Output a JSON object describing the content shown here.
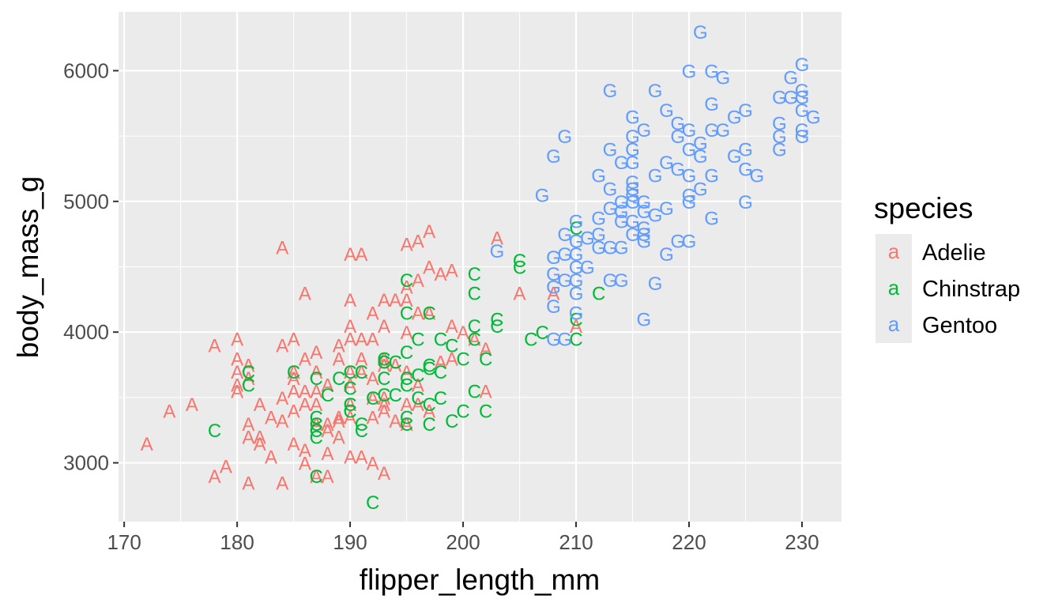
{
  "chart_data": {
    "type": "scatter",
    "xlabel": "flipper_length_mm",
    "ylabel": "body_mass_g",
    "xlim": [
      169.5,
      233.5
    ],
    "ylim": [
      2550,
      6450
    ],
    "x_ticks": [
      "170",
      "180",
      "190",
      "200",
      "210",
      "220",
      "230"
    ],
    "y_ticks": [
      "3000",
      "4000",
      "5000",
      "6000"
    ],
    "grid": true,
    "legend": {
      "title": "species",
      "position": "right",
      "key_glyph": "a",
      "entries": [
        "Adelie",
        "Chinstrap",
        "Gentoo"
      ]
    },
    "series": [
      {
        "name": "Adelie",
        "label": "A",
        "color": "#F8766D",
        "points": [
          [
            172,
            3150
          ],
          [
            174,
            3400
          ],
          [
            176,
            3450
          ],
          [
            178,
            2900
          ],
          [
            178,
            3900
          ],
          [
            179,
            2975
          ],
          [
            180,
            3550
          ],
          [
            180,
            3600
          ],
          [
            180,
            3700
          ],
          [
            180,
            3800
          ],
          [
            180,
            3950
          ],
          [
            181,
            2850
          ],
          [
            181,
            3200
          ],
          [
            181,
            3300
          ],
          [
            181,
            3650
          ],
          [
            181,
            3750
          ],
          [
            182,
            3150
          ],
          [
            182,
            3200
          ],
          [
            182,
            3450
          ],
          [
            183,
            3050
          ],
          [
            183,
            3350
          ],
          [
            184,
            3325
          ],
          [
            184,
            3500
          ],
          [
            184,
            3900
          ],
          [
            184,
            4650
          ],
          [
            184,
            2850
          ],
          [
            185,
            3150
          ],
          [
            185,
            3400
          ],
          [
            185,
            3550
          ],
          [
            185,
            3650
          ],
          [
            185,
            3700
          ],
          [
            185,
            3950
          ],
          [
            186,
            3000
          ],
          [
            186,
            3100
          ],
          [
            186,
            3450
          ],
          [
            186,
            3550
          ],
          [
            186,
            3800
          ],
          [
            186,
            4300
          ],
          [
            187,
            3300
          ],
          [
            187,
            3450
          ],
          [
            187,
            3550
          ],
          [
            187,
            3700
          ],
          [
            187,
            3850
          ],
          [
            187,
            2900
          ],
          [
            188,
            2900
          ],
          [
            188,
            3075
          ],
          [
            188,
            3250
          ],
          [
            188,
            3300
          ],
          [
            188,
            3600
          ],
          [
            189,
            3200
          ],
          [
            189,
            3325
          ],
          [
            189,
            3350
          ],
          [
            189,
            3800
          ],
          [
            189,
            3900
          ],
          [
            190,
            3050
          ],
          [
            190,
            3350
          ],
          [
            190,
            3450
          ],
          [
            190,
            3600
          ],
          [
            190,
            3700
          ],
          [
            190,
            3950
          ],
          [
            190,
            4050
          ],
          [
            190,
            4250
          ],
          [
            190,
            4600
          ],
          [
            191,
            3050
          ],
          [
            191,
            3700
          ],
          [
            191,
            3800
          ],
          [
            191,
            3950
          ],
          [
            191,
            4600
          ],
          [
            192,
            3000
          ],
          [
            192,
            3350
          ],
          [
            192,
            3500
          ],
          [
            192,
            3650
          ],
          [
            192,
            3950
          ],
          [
            192,
            4150
          ],
          [
            193,
            2925
          ],
          [
            193,
            3400
          ],
          [
            193,
            3450
          ],
          [
            193,
            3500
          ],
          [
            193,
            3750
          ],
          [
            193,
            3800
          ],
          [
            193,
            4050
          ],
          [
            193,
            4250
          ],
          [
            194,
            3325
          ],
          [
            194,
            3750
          ],
          [
            194,
            4250
          ],
          [
            195,
            3300
          ],
          [
            195,
            3450
          ],
          [
            195,
            3700
          ],
          [
            195,
            4000
          ],
          [
            195,
            4250
          ],
          [
            195,
            4350
          ],
          [
            195,
            4675
          ],
          [
            196,
            3450
          ],
          [
            196,
            3600
          ],
          [
            196,
            4150
          ],
          [
            196,
            4400
          ],
          [
            196,
            4700
          ],
          [
            197,
            3400
          ],
          [
            197,
            4150
          ],
          [
            197,
            4500
          ],
          [
            197,
            4775
          ],
          [
            198,
            3775
          ],
          [
            198,
            4450
          ],
          [
            199,
            3800
          ],
          [
            199,
            4050
          ],
          [
            199,
            4475
          ],
          [
            200,
            4000
          ],
          [
            201,
            3950
          ],
          [
            202,
            3550
          ],
          [
            202,
            3875
          ],
          [
            203,
            4725
          ],
          [
            205,
            4300
          ],
          [
            208,
            4300
          ],
          [
            210,
            4050
          ]
        ]
      },
      {
        "name": "Chinstrap",
        "label": "C",
        "color": "#00BA38",
        "points": [
          [
            178,
            3250
          ],
          [
            181,
            3600
          ],
          [
            181,
            3700
          ],
          [
            185,
            3700
          ],
          [
            187,
            2900
          ],
          [
            187,
            3200
          ],
          [
            187,
            3250
          ],
          [
            187,
            3300
          ],
          [
            187,
            3350
          ],
          [
            187,
            3650
          ],
          [
            188,
            3525
          ],
          [
            189,
            3650
          ],
          [
            190,
            3400
          ],
          [
            190,
            3450
          ],
          [
            190,
            3575
          ],
          [
            190,
            3700
          ],
          [
            191,
            3250
          ],
          [
            191,
            3300
          ],
          [
            191,
            3700
          ],
          [
            192,
            2700
          ],
          [
            192,
            3500
          ],
          [
            193,
            3525
          ],
          [
            193,
            3650
          ],
          [
            193,
            3775
          ],
          [
            193,
            3800
          ],
          [
            194,
            3525
          ],
          [
            194,
            3775
          ],
          [
            195,
            3300
          ],
          [
            195,
            3350
          ],
          [
            195,
            3600
          ],
          [
            195,
            3650
          ],
          [
            195,
            3850
          ],
          [
            195,
            4150
          ],
          [
            195,
            4400
          ],
          [
            196,
            3500
          ],
          [
            196,
            3675
          ],
          [
            196,
            3950
          ],
          [
            197,
            3300
          ],
          [
            197,
            3450
          ],
          [
            197,
            3725
          ],
          [
            197,
            3750
          ],
          [
            197,
            4150
          ],
          [
            198,
            3500
          ],
          [
            198,
            3700
          ],
          [
            198,
            3950
          ],
          [
            199,
            3325
          ],
          [
            199,
            3900
          ],
          [
            200,
            3400
          ],
          [
            200,
            3800
          ],
          [
            201,
            3550
          ],
          [
            201,
            3950
          ],
          [
            201,
            4050
          ],
          [
            201,
            4300
          ],
          [
            201,
            4450
          ],
          [
            202,
            3400
          ],
          [
            202,
            3800
          ],
          [
            203,
            4050
          ],
          [
            203,
            4100
          ],
          [
            205,
            4500
          ],
          [
            205,
            4550
          ],
          [
            206,
            3950
          ],
          [
            207,
            4000
          ],
          [
            210,
            3950
          ],
          [
            210,
            4100
          ],
          [
            210,
            4800
          ],
          [
            212,
            4300
          ]
        ]
      },
      {
        "name": "Gentoo",
        "label": "G",
        "color": "#619CFF",
        "points": [
          [
            203,
            4625
          ],
          [
            207,
            5050
          ],
          [
            208,
            3950
          ],
          [
            208,
            4200
          ],
          [
            208,
            4350
          ],
          [
            208,
            4450
          ],
          [
            208,
            4575
          ],
          [
            208,
            5350
          ],
          [
            209,
            3950
          ],
          [
            209,
            4400
          ],
          [
            209,
            4600
          ],
          [
            209,
            4750
          ],
          [
            209,
            5500
          ],
          [
            210,
            4150
          ],
          [
            210,
            4300
          ],
          [
            210,
            4400
          ],
          [
            210,
            4500
          ],
          [
            210,
            4600
          ],
          [
            210,
            4700
          ],
          [
            210,
            4850
          ],
          [
            211,
            4500
          ],
          [
            211,
            4725
          ],
          [
            212,
            4650
          ],
          [
            212,
            4750
          ],
          [
            212,
            4875
          ],
          [
            212,
            5200
          ],
          [
            213,
            4400
          ],
          [
            213,
            4650
          ],
          [
            213,
            4950
          ],
          [
            213,
            5100
          ],
          [
            213,
            5400
          ],
          [
            213,
            5850
          ],
          [
            214,
            4400
          ],
          [
            214,
            4650
          ],
          [
            214,
            4850
          ],
          [
            214,
            4925
          ],
          [
            214,
            5000
          ],
          [
            214,
            5300
          ],
          [
            215,
            4750
          ],
          [
            215,
            4850
          ],
          [
            215,
            5000
          ],
          [
            215,
            5050
          ],
          [
            215,
            5100
          ],
          [
            215,
            5150
          ],
          [
            215,
            5300
          ],
          [
            215,
            5400
          ],
          [
            215,
            5500
          ],
          [
            215,
            5650
          ],
          [
            216,
            4100
          ],
          [
            216,
            4700
          ],
          [
            216,
            4750
          ],
          [
            216,
            4800
          ],
          [
            216,
            4925
          ],
          [
            216,
            5000
          ],
          [
            216,
            5550
          ],
          [
            217,
            4375
          ],
          [
            217,
            4900
          ],
          [
            217,
            5200
          ],
          [
            217,
            5850
          ],
          [
            218,
            4600
          ],
          [
            218,
            4950
          ],
          [
            218,
            5300
          ],
          [
            218,
            5700
          ],
          [
            219,
            4700
          ],
          [
            219,
            5250
          ],
          [
            219,
            5500
          ],
          [
            219,
            5600
          ],
          [
            220,
            4700
          ],
          [
            220,
            5000
          ],
          [
            220,
            5050
          ],
          [
            220,
            5200
          ],
          [
            220,
            5400
          ],
          [
            220,
            5550
          ],
          [
            220,
            6000
          ],
          [
            221,
            5100
          ],
          [
            221,
            5350
          ],
          [
            221,
            5450
          ],
          [
            221,
            6300
          ],
          [
            222,
            4875
          ],
          [
            222,
            5200
          ],
          [
            222,
            5550
          ],
          [
            222,
            5750
          ],
          [
            222,
            6000
          ],
          [
            223,
            5550
          ],
          [
            223,
            5950
          ],
          [
            224,
            5350
          ],
          [
            224,
            5650
          ],
          [
            225,
            5000
          ],
          [
            225,
            5250
          ],
          [
            225,
            5400
          ],
          [
            225,
            5700
          ],
          [
            226,
            5200
          ],
          [
            228,
            5400
          ],
          [
            228,
            5500
          ],
          [
            228,
            5600
          ],
          [
            228,
            5800
          ],
          [
            229,
            5800
          ],
          [
            229,
            5950
          ],
          [
            230,
            5500
          ],
          [
            230,
            5550
          ],
          [
            230,
            5700
          ],
          [
            230,
            5800
          ],
          [
            230,
            5850
          ],
          [
            230,
            6050
          ],
          [
            231,
            5650
          ]
        ]
      }
    ]
  }
}
